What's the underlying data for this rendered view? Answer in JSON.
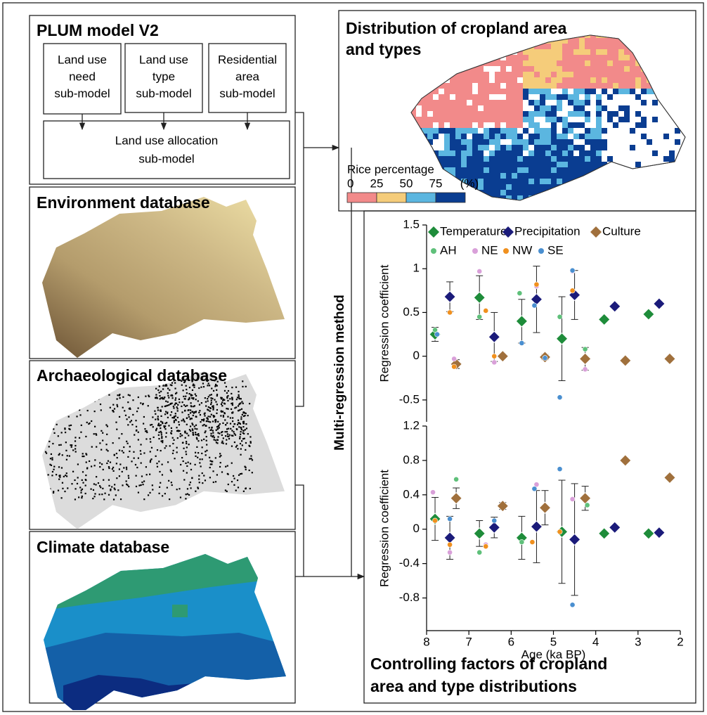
{
  "plum": {
    "title": "PLUM model V2",
    "submodels": [
      [
        "Land use",
        "need",
        "sub-model"
      ],
      [
        "Land use",
        "type",
        "sub-model"
      ],
      [
        "Residential",
        "area",
        "sub-model"
      ]
    ],
    "allocation": [
      "Land use allocation",
      "sub-model"
    ]
  },
  "databases": [
    "Environment database",
    "Archaeological database",
    "Climate database"
  ],
  "method": "Multi-regression method",
  "distribution": {
    "title_lines": [
      "Distribution of cropland area",
      "and types"
    ],
    "legend": {
      "title": "Rice percentage",
      "ticks": [
        0,
        25,
        50,
        75
      ],
      "unit": "(%)",
      "colors": [
        "#f28a8a",
        "#f5cc7a",
        "#5bb6e0",
        "#0a3d91"
      ]
    }
  },
  "controlling": {
    "title_lines": [
      "Controlling factors of cropland",
      "area and type distributions"
    ]
  },
  "chart_data": [
    {
      "type": "scatter",
      "ylabel": "Regression coefficient",
      "xlim": [
        8,
        2
      ],
      "ylim": [
        -0.75,
        1.5
      ],
      "yticks": [
        1.5,
        1,
        0.5,
        0,
        -0.5
      ],
      "series": [
        {
          "name": "Temperature",
          "color": "#1e8c3a",
          "marker": "diamond",
          "x": [
            7.8,
            6.75,
            5.75,
            4.8,
            3.8,
            2.75
          ],
          "values": [
            0.25,
            0.67,
            0.4,
            0.2,
            0.42,
            0.48
          ],
          "errors": [
            0.08,
            0.25,
            0.25,
            0.48,
            null,
            null
          ]
        },
        {
          "name": "Precipitation",
          "color": "#1b1b7a",
          "marker": "diamond",
          "x": [
            7.45,
            6.4,
            5.4,
            4.5,
            3.55,
            2.5
          ],
          "values": [
            0.68,
            0.22,
            0.65,
            0.7,
            0.57,
            0.6
          ],
          "errors": [
            0.17,
            0.28,
            0.38,
            0.28,
            null,
            null
          ]
        },
        {
          "name": "Culture",
          "color": "#a0703c",
          "marker": "diamond",
          "x": [
            7.3,
            6.2,
            5.2,
            4.25,
            3.3,
            2.25
          ],
          "values": [
            -0.09,
            0.0,
            -0.01,
            -0.03,
            -0.05,
            -0.03
          ],
          "errors": [
            0.05,
            0.02,
            0.03,
            0.13,
            null,
            null
          ]
        },
        {
          "name": "AH",
          "color": "#5fc07a",
          "marker": "circle",
          "x": [
            7.8,
            6.75,
            5.8,
            4.85,
            4.25
          ],
          "values": [
            0.3,
            0.45,
            0.72,
            0.45,
            0.08
          ]
        },
        {
          "name": "NE",
          "color": "#d9a0d9",
          "marker": "circle",
          "x": [
            6.75,
            7.35,
            6.4,
            5.4,
            4.55,
            4.25
          ],
          "values": [
            0.97,
            -0.03,
            -0.07,
            0.8,
            0.97,
            -0.15
          ]
        },
        {
          "name": "NW",
          "color": "#f0901e",
          "marker": "circle",
          "x": [
            7.45,
            6.6,
            7.35,
            5.4,
            4.55,
            6.4
          ],
          "values": [
            0.5,
            0.52,
            -0.12,
            0.82,
            0.75,
            0.0
          ]
        },
        {
          "name": "SE",
          "color": "#4a8fd0",
          "marker": "circle",
          "x": [
            7.75,
            5.75,
            5.45,
            4.85,
            4.55,
            5.2
          ],
          "values": [
            0.25,
            0.15,
            0.58,
            -0.47,
            0.98,
            -0.02
          ]
        }
      ]
    },
    {
      "type": "scatter",
      "ylabel": "Regression coefficient",
      "xlabel": "Age (ka BP)",
      "xlim": [
        8,
        2
      ],
      "xticks": [
        8,
        7,
        6,
        5,
        4,
        3,
        2
      ],
      "ylim": [
        -1.18,
        1.2
      ],
      "yticks": [
        1.2,
        0.8,
        0.4,
        0,
        -0.4,
        -0.8
      ],
      "series": [
        {
          "color": "#1e8c3a",
          "marker": "diamond",
          "x": [
            7.8,
            6.75,
            5.75,
            4.8,
            3.8,
            2.75
          ],
          "values": [
            0.12,
            -0.05,
            -0.1,
            -0.03,
            -0.05,
            -0.05
          ],
          "errors": [
            0.25,
            0.15,
            0.25,
            0.6,
            null,
            null
          ]
        },
        {
          "color": "#1b1b7a",
          "marker": "diamond",
          "x": [
            7.45,
            6.4,
            5.4,
            4.5,
            3.55,
            2.5
          ],
          "values": [
            -0.1,
            0.02,
            0.03,
            -0.12,
            0.02,
            -0.04
          ],
          "errors": [
            0.25,
            0.12,
            0.42,
            0.65,
            null,
            null
          ]
        },
        {
          "color": "#a0703c",
          "marker": "diamond",
          "x": [
            7.3,
            6.2,
            5.2,
            4.25,
            3.3,
            2.25
          ],
          "values": [
            0.36,
            0.27,
            0.25,
            0.36,
            0.8,
            0.6
          ],
          "errors": [
            0.12,
            0.04,
            0.2,
            0.14,
            null,
            null
          ]
        },
        {
          "color": "#5fc07a",
          "marker": "circle",
          "x": [
            7.3,
            6.75,
            5.75,
            4.2
          ],
          "values": [
            0.58,
            -0.27,
            -0.15,
            0.28
          ]
        },
        {
          "color": "#d9a0d9",
          "marker": "circle",
          "x": [
            7.85,
            7.45,
            6.6,
            5.4,
            4.55
          ],
          "values": [
            0.43,
            -0.27,
            -0.18,
            0.52,
            0.35
          ]
        },
        {
          "color": "#f0901e",
          "marker": "circle",
          "x": [
            7.8,
            7.45,
            6.6,
            5.5,
            4.85
          ],
          "values": [
            0.1,
            -0.18,
            -0.2,
            -0.15,
            -0.03
          ]
        },
        {
          "color": "#4a8fd0",
          "marker": "circle",
          "x": [
            7.45,
            6.4,
            5.45,
            4.85,
            4.55
          ],
          "values": [
            0.12,
            0.1,
            0.47,
            0.7,
            -0.88
          ]
        }
      ]
    }
  ]
}
